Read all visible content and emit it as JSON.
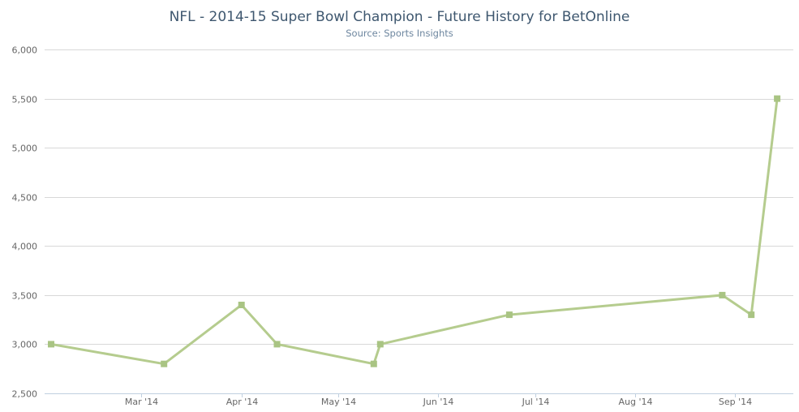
{
  "chart_data": {
    "type": "line",
    "title": "NFL - 2014-15 Super Bowl Champion - Future History for BetOnline",
    "subtitle": "Source: Sports Insights",
    "xlabel": "",
    "ylabel": "",
    "ylim": [
      2500,
      6000
    ],
    "y_ticks": [
      2500,
      3000,
      3500,
      4000,
      4500,
      5000,
      5500,
      6000
    ],
    "y_tick_labels": [
      "2,500",
      "3,000",
      "3,500",
      "4,000",
      "4,500",
      "5,000",
      "5,500",
      "6,000"
    ],
    "x_range": [
      "2014-02-01",
      "2014-09-17"
    ],
    "x_ticks": [
      {
        "date": "2014-03-01",
        "label": "Mar '14"
      },
      {
        "date": "2014-04-01",
        "label": "Apr '14"
      },
      {
        "date": "2014-05-01",
        "label": "May '14"
      },
      {
        "date": "2014-06-01",
        "label": "Jun '14"
      },
      {
        "date": "2014-07-01",
        "label": "Jul '14"
      },
      {
        "date": "2014-08-01",
        "label": "Aug '14"
      },
      {
        "date": "2014-09-01",
        "label": "Sep '14"
      }
    ],
    "grid": "horizontal",
    "legend": "none",
    "series": [
      {
        "color": "#b5cc8e",
        "marker_color": "#a9c483",
        "points": [
          {
            "x": "2014-02-01",
            "y": 3000
          },
          {
            "x": "2014-03-08",
            "y": 2800
          },
          {
            "x": "2014-04-01",
            "y": 3400
          },
          {
            "x": "2014-04-12",
            "y": 3000
          },
          {
            "x": "2014-05-12",
            "y": 2800
          },
          {
            "x": "2014-05-14",
            "y": 3000
          },
          {
            "x": "2014-06-23",
            "y": 3300
          },
          {
            "x": "2014-08-28",
            "y": 3500
          },
          {
            "x": "2014-09-06",
            "y": 3300
          },
          {
            "x": "2014-09-14",
            "y": 5500
          }
        ]
      }
    ]
  }
}
